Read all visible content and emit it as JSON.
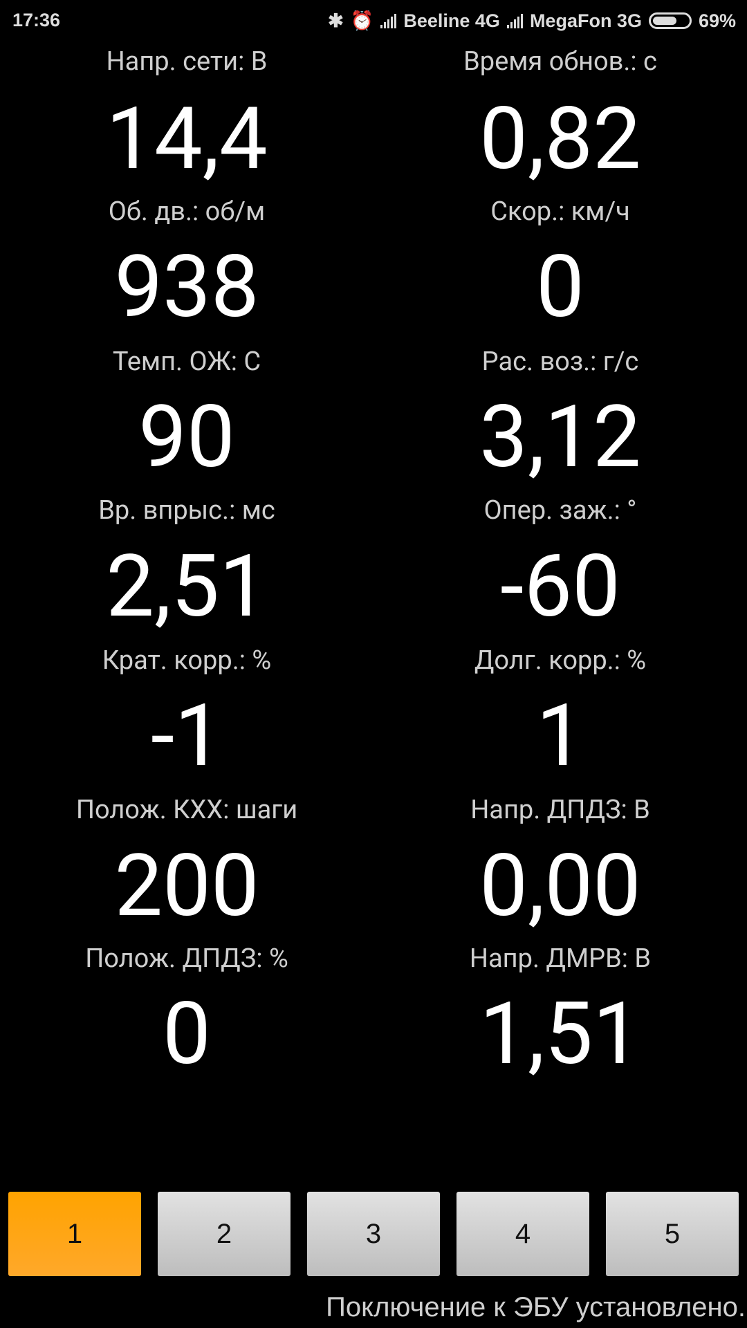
{
  "status_bar": {
    "time": "17:36",
    "icons": [
      "bluetooth-icon",
      "alarm-icon"
    ],
    "carrier1": "Beeline 4G",
    "carrier2": "MegaFon 3G",
    "battery_percent": "69%",
    "battery_level": 69
  },
  "params": [
    {
      "label": "Напр. сети: В",
      "value": "14,4"
    },
    {
      "label": "Время обнов.: с",
      "value": "0,82"
    },
    {
      "label": "Об. дв.: об/м",
      "value": "938"
    },
    {
      "label": "Скор.: км/ч",
      "value": "0"
    },
    {
      "label": "Темп. ОЖ: С",
      "value": "90"
    },
    {
      "label": "Рас. воз.: г/с",
      "value": "3,12"
    },
    {
      "label": "Вр. впрыс.: мс",
      "value": "2,51"
    },
    {
      "label": "Опер. заж.: °",
      "value": "-60"
    },
    {
      "label": "Крат. корр.: %",
      "value": "-1"
    },
    {
      "label": "Долг. корр.: %",
      "value": "1"
    },
    {
      "label": "Полож. КХХ: шаги",
      "value": "200"
    },
    {
      "label": "Напр. ДПДЗ: В",
      "value": "0,00"
    },
    {
      "label": "Полож. ДПДЗ: %",
      "value": "0"
    },
    {
      "label": "Напр. ДМРВ: В",
      "value": "1,51"
    }
  ],
  "pages": {
    "buttons": [
      "1",
      "2",
      "3",
      "4",
      "5"
    ],
    "active": 0,
    "active_color": "#ffa300"
  },
  "connection_status": "Поключение к ЭБУ установлено."
}
